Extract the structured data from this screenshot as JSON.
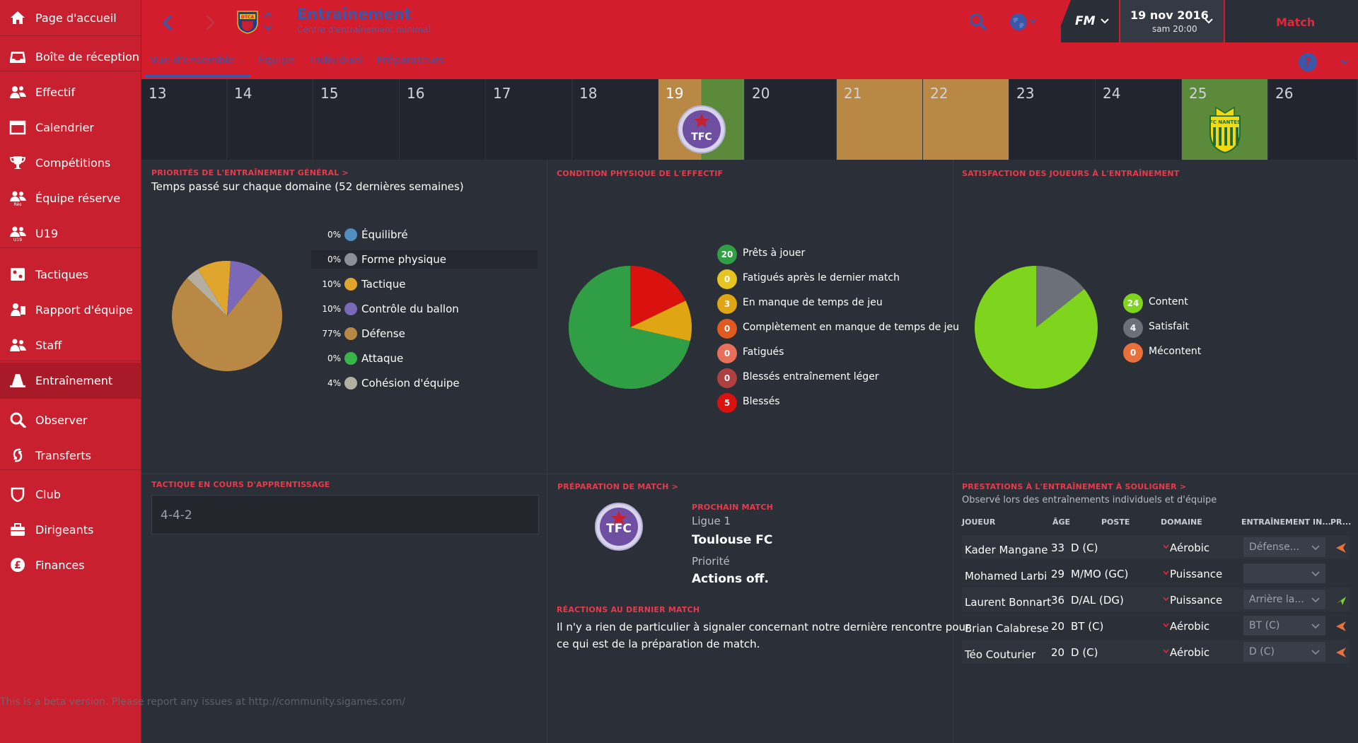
{
  "sidebar": {
    "items": [
      {
        "label": "Page d'accueil",
        "icon": "home-icon"
      },
      {
        "label": "Boîte de réception",
        "icon": "inbox-icon"
      },
      {
        "label": "Effectif",
        "icon": "squad-icon"
      },
      {
        "label": "Calendrier",
        "icon": "calendar-icon"
      },
      {
        "label": "Compétitions",
        "icon": "trophy-icon"
      },
      {
        "label": "Équipe réserve",
        "icon": "reserve-team-icon",
        "badge": "Rés"
      },
      {
        "label": "U19",
        "icon": "u19-icon",
        "badge": "U19"
      },
      {
        "label": "Tactiques",
        "icon": "tactics-icon"
      },
      {
        "label": "Rapport d'équipe",
        "icon": "team-report-icon"
      },
      {
        "label": "Staff",
        "icon": "staff-icon"
      },
      {
        "label": "Entraînement",
        "icon": "training-cone-icon",
        "active": true
      },
      {
        "label": "Observer",
        "icon": "scouting-search-icon"
      },
      {
        "label": "Transferts",
        "icon": "transfers-icon"
      },
      {
        "label": "Club",
        "icon": "club-shield-icon"
      },
      {
        "label": "Dirigeants",
        "icon": "board-briefcase-icon"
      },
      {
        "label": "Finances",
        "icon": "finances-pound-icon"
      }
    ]
  },
  "header": {
    "title": "Entraînement",
    "subtitle": "Centre d'entraînement minimal",
    "club_badge": "OTCA",
    "date": "19 nov 2016",
    "time": "sam 20:00",
    "fm_logo": "FM",
    "match_label": "Match",
    "tabs": [
      {
        "label": "Vue d'ensemble",
        "active": true,
        "has_dropdown": true
      },
      {
        "label": "Équipe"
      },
      {
        "label": "Individuel"
      },
      {
        "label": "Préparateurs"
      }
    ],
    "help_label": "?"
  },
  "calendar": {
    "days": [
      {
        "num": "13",
        "kind": "empty"
      },
      {
        "num": "14",
        "kind": "empty"
      },
      {
        "num": "15",
        "kind": "empty"
      },
      {
        "num": "16",
        "kind": "empty"
      },
      {
        "num": "17",
        "kind": "empty"
      },
      {
        "num": "18",
        "kind": "empty"
      },
      {
        "num": "19",
        "kind": "match",
        "opponent_badge": "TFC",
        "current": true
      },
      {
        "num": "20",
        "kind": "empty"
      },
      {
        "num": "21",
        "kind": "training"
      },
      {
        "num": "22",
        "kind": "training"
      },
      {
        "num": "23",
        "kind": "empty"
      },
      {
        "num": "24",
        "kind": "empty"
      },
      {
        "num": "25",
        "kind": "match",
        "opponent_badge": "FC NANTES"
      },
      {
        "num": "26",
        "kind": "empty"
      }
    ],
    "colors": {
      "training": "#b98844",
      "match_home": "#5a8a3a",
      "empty": "#22252d"
    }
  },
  "priorities": {
    "title": "PRIORITÉS DE L'ENTRAÎNEMENT GÉNÉRAL >",
    "subtitle": "Temps passé sur chaque domaine (52 dernières semaines)",
    "items": [
      {
        "pct": "0%",
        "label": "Équilibré",
        "color": "#4f8fc0",
        "value": 0
      },
      {
        "pct": "0%",
        "label": "Forme physique",
        "color": "#8c9097",
        "value": 0
      },
      {
        "pct": "10%",
        "label": "Tactique",
        "color": "#e0a52c",
        "value": 10
      },
      {
        "pct": "10%",
        "label": "Contrôle du ballon",
        "color": "#7b68b8",
        "value": 10
      },
      {
        "pct": "77%",
        "label": "Défense",
        "color": "#b98844",
        "value": 77
      },
      {
        "pct": "0%",
        "label": "Attaque",
        "color": "#39b54a",
        "value": 0
      },
      {
        "pct": "4%",
        "label": "Cohésion d'équipe",
        "color": "#b5afa2",
        "value": 4
      }
    ]
  },
  "condition": {
    "title": "CONDITION PHYSIQUE DE L'EFFECTIF",
    "items": [
      {
        "count": "20",
        "label": "Prêts à jouer",
        "color": "#2f9e44",
        "value": 20
      },
      {
        "count": "0",
        "label": "Fatigués après le dernier match",
        "color": "#e7c41f",
        "value": 0
      },
      {
        "count": "3",
        "label": "En manque de temps de jeu",
        "color": "#e0a512",
        "value": 3
      },
      {
        "count": "0",
        "label": "Complètement en manque de temps de jeu",
        "color": "#e05a1f",
        "value": 0
      },
      {
        "count": "0",
        "label": "Fatigués",
        "color": "#e8705a",
        "value": 0
      },
      {
        "count": "0",
        "label": "Blessés entraînement léger",
        "color": "#b04040",
        "value": 0
      },
      {
        "count": "5",
        "label": "Blessés",
        "color": "#d9120f",
        "value": 5
      }
    ]
  },
  "satisfaction": {
    "title": "SATISFACTION DES JOUEURS À L'ENTRAÎNEMENT",
    "items": [
      {
        "count": "24",
        "label": "Content",
        "color": "#7fd41e",
        "value": 24
      },
      {
        "count": "4",
        "label": "Satisfait",
        "color": "#6b7079",
        "value": 4
      },
      {
        "count": "0",
        "label": "Mécontent",
        "color": "#e8703a",
        "value": 0
      }
    ]
  },
  "tactic": {
    "title": "TACTIQUE EN COURS D'APPRENTISSAGE",
    "value": "4-4-2"
  },
  "match_prep": {
    "title": "PRÉPARATION DE MATCH >",
    "next_match_label": "PROCHAIN MATCH",
    "competition": "Ligue 1",
    "opponent": "Toulouse FC",
    "priority_label": "Priorité",
    "priority_value": "Actions off.",
    "opponent_badge": "TFC"
  },
  "reactions": {
    "title": "RÉACTIONS AU DERNIER MATCH",
    "text_line1": "Il n'y a rien de particulier à signaler concernant notre dernière rencontre pour",
    "text_line2": "ce qui est de la préparation de match."
  },
  "performances": {
    "title": "PRESTATIONS À L'ENTRAÎNEMENT À SOULIGNER >",
    "subtitle": "Observé lors des entraînements individuels et d'équipe",
    "headers": [
      "JOUEUR",
      "ÂGE",
      "POSTE",
      "DOMAINE",
      "ENTRAÎNEMENT IN...",
      "PR..."
    ],
    "rows": [
      {
        "name": "Kader Mangane",
        "age": "33",
        "pos": "D (C)",
        "domain": "Aérobic",
        "training": "Défense...",
        "trend": "down"
      },
      {
        "name": "Mohamed Larbi",
        "age": "29",
        "pos": "M/MO (GC)",
        "domain": "Puissance",
        "training": "",
        "trend": "none"
      },
      {
        "name": "Laurent Bonnart",
        "age": "36",
        "pos": "D/AL (DG)",
        "domain": "Puissance",
        "training": "Arrière la...",
        "trend": "up"
      },
      {
        "name": "Brian Calabrese",
        "age": "20",
        "pos": "BT (C)",
        "domain": "Aérobic",
        "training": "BT (C)",
        "trend": "down"
      },
      {
        "name": "Téo Couturier",
        "age": "20",
        "pos": "D (C)",
        "domain": "Aérobic",
        "training": "D (C)",
        "trend": "down"
      }
    ]
  },
  "beta_notice": "This is a beta version. Please report any issues at http://community.sigames.com/"
}
